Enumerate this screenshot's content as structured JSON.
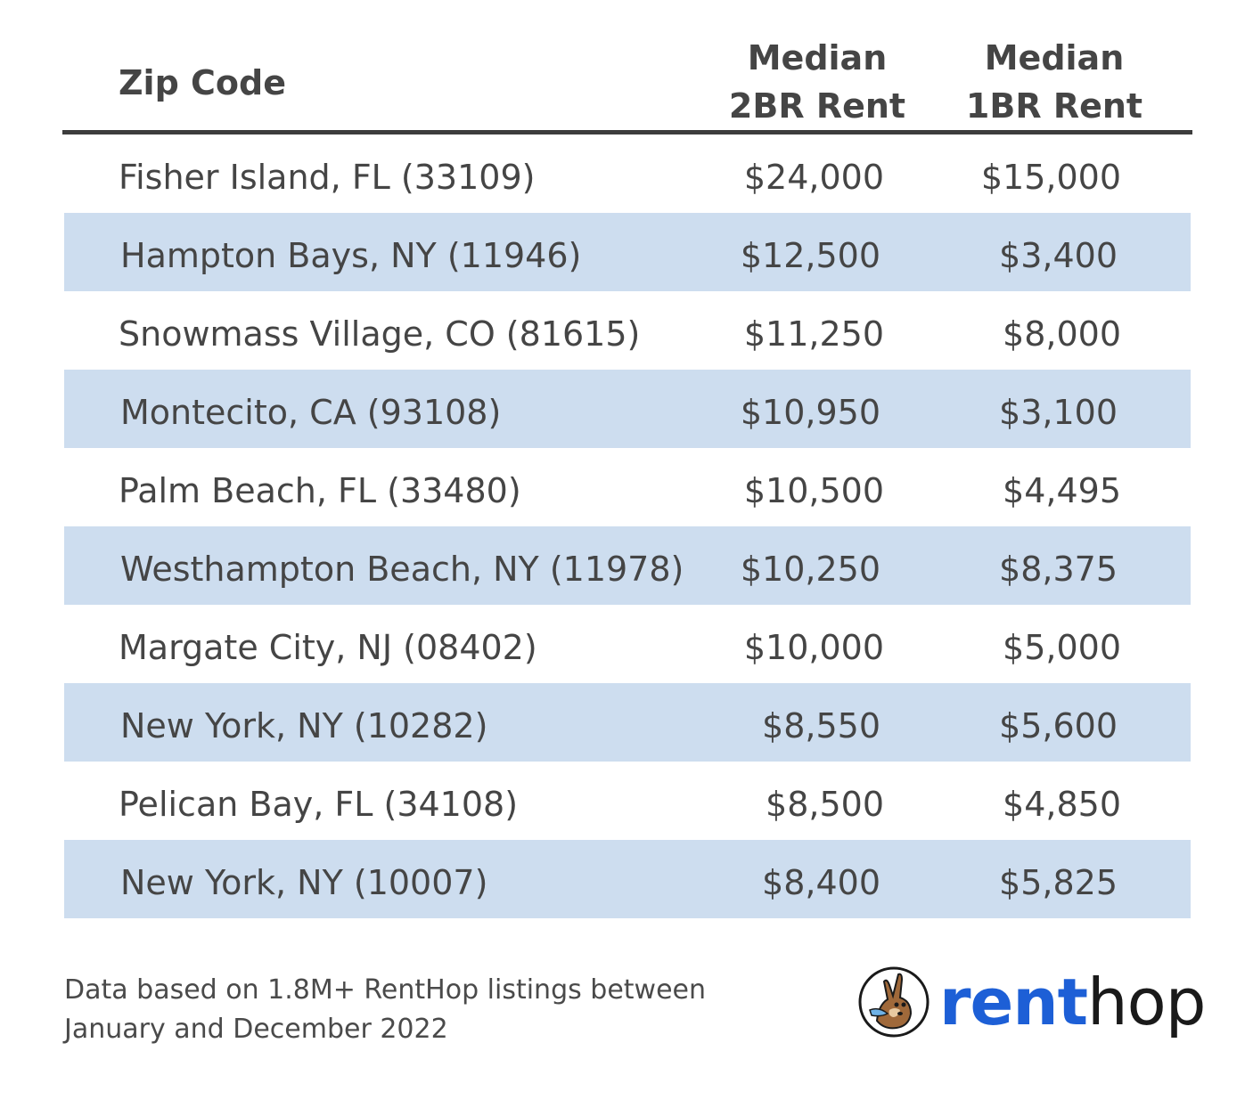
{
  "table": {
    "headers": {
      "zip": "Zip Code",
      "two_br_line1": "Median",
      "two_br_line2": "2BR Rent",
      "one_br_line1": "Median",
      "one_br_line2": "1BR Rent"
    },
    "rows": [
      {
        "name": "Fisher Island, FL (33109)",
        "two_br": "$24,000",
        "one_br": "$15,000"
      },
      {
        "name": "Hampton Bays, NY (11946)",
        "two_br": "$12,500",
        "one_br": "$3,400"
      },
      {
        "name": "Snowmass Village, CO (81615)",
        "two_br": "$11,250",
        "one_br": "$8,000"
      },
      {
        "name": "Montecito, CA (93108)",
        "two_br": "$10,950",
        "one_br": "$3,100"
      },
      {
        "name": "Palm Beach, FL (33480)",
        "two_br": "$10,500",
        "one_br": "$4,495"
      },
      {
        "name": "Westhampton Beach, NY (11978)",
        "two_br": "$10,250",
        "one_br": "$8,375"
      },
      {
        "name": "Margate City, NJ (08402)",
        "two_br": "$10,000",
        "one_br": "$5,000"
      },
      {
        "name": "New York, NY (10282)",
        "two_br": "$8,550",
        "one_br": "$5,600"
      },
      {
        "name": "Pelican Bay, FL (34108)",
        "two_br": "$8,500",
        "one_br": "$4,850"
      },
      {
        "name": "New York, NY (10007)",
        "two_br": "$8,400",
        "one_br": "$5,825"
      }
    ]
  },
  "footnote": {
    "line1": "Data based on 1.8M+ RentHop listings between",
    "line2": "January and December 2022"
  },
  "logo": {
    "icon": "renthop-kangaroo-icon",
    "part1": "rent",
    "part2": "hop"
  },
  "colors": {
    "row_shade": "#cdddef",
    "text": "#454545",
    "rule": "#3d3d3d",
    "logo_blue": "#1d5fd6"
  }
}
